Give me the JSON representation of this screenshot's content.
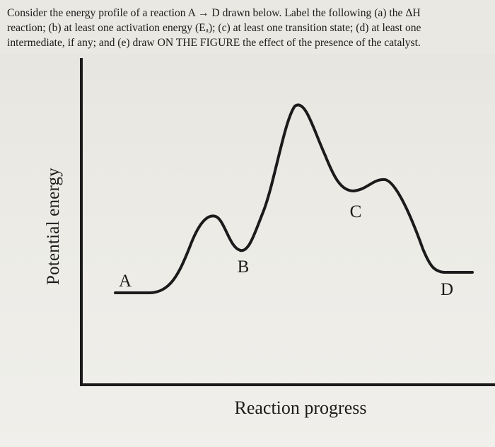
{
  "question": {
    "lines": [
      "Consider the energy profile of a reaction A → D drawn below. Label the following (a) the ΔH",
      "reaction; (b) at least one activation energy (Eₐ); (c) at least one transition state; (d) at least one",
      "intermediate, if any; and (e) draw ON THE FIGURE the effect of the presence of the catalyst."
    ]
  },
  "diagram": {
    "y_axis_label": "Potential energy",
    "x_axis_label": "Reaction progress",
    "points": {
      "a": "A",
      "b": "B",
      "c": "C",
      "d": "D"
    },
    "colors": {
      "ink": "#1b1b1b",
      "paper": "#ecebe6"
    }
  }
}
